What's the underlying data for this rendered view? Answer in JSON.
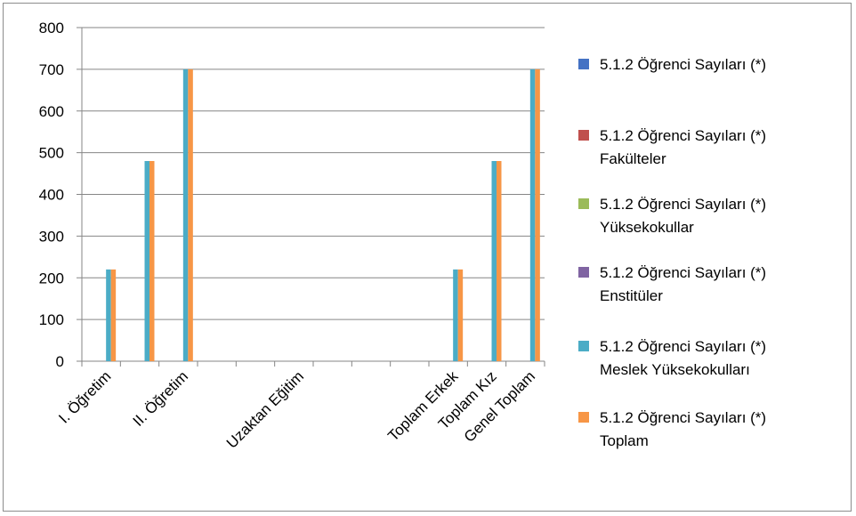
{
  "chart_data": {
    "type": "bar",
    "title": "",
    "xlabel": "",
    "ylabel": "",
    "ylim": [
      0,
      800
    ],
    "yticks": [
      0,
      100,
      200,
      300,
      400,
      500,
      600,
      700,
      800
    ],
    "grid": true,
    "legend_position": "right",
    "categories": [
      "I. Öğretim",
      "",
      "II. Öğretim",
      "",
      "",
      "Uzaktan Eğitim",
      "",
      "",
      "",
      "Toplam Erkek",
      "Toplam Kız",
      "Genel Toplam"
    ],
    "series": [
      {
        "name": "5.1.2  Öğrenci Sayıları (*)",
        "color": "#4472C4",
        "values": [
          0,
          0,
          0,
          0,
          0,
          0,
          0,
          0,
          0,
          0,
          0,
          0
        ]
      },
      {
        "name": "5.1.2  Öğrenci Sayıları (*) Fakülteler",
        "color": "#C0504D",
        "values": [
          0,
          0,
          0,
          0,
          0,
          0,
          0,
          0,
          0,
          0,
          0,
          0
        ]
      },
      {
        "name": "5.1.2  Öğrenci Sayıları (*) Yüksekokullar",
        "color": "#9BBB59",
        "values": [
          0,
          0,
          0,
          0,
          0,
          0,
          0,
          0,
          0,
          0,
          0,
          0
        ]
      },
      {
        "name": "5.1.2  Öğrenci Sayıları (*) Enstitüler",
        "color": "#8064A2",
        "values": [
          0,
          0,
          0,
          0,
          0,
          0,
          0,
          0,
          0,
          0,
          0,
          0
        ]
      },
      {
        "name": "5.1.2  Öğrenci Sayıları (*) Meslek Yüksekokulları",
        "color": "#4BACC6",
        "values": [
          220,
          480,
          700,
          0,
          0,
          0,
          0,
          0,
          0,
          220,
          480,
          700
        ]
      },
      {
        "name": "5.1.2  Öğrenci Sayıları (*) Toplam",
        "color": "#F79646",
        "values": [
          220,
          480,
          700,
          0,
          0,
          0,
          0,
          0,
          0,
          220,
          480,
          700
        ]
      }
    ],
    "legend": [
      {
        "lines": [
          "5.1.2  Öğrenci Sayıları (*)"
        ],
        "color": "#4472C4"
      },
      {
        "lines": [
          "5.1.2  Öğrenci Sayıları (*)",
          "Fakülteler"
        ],
        "color": "#C0504D"
      },
      {
        "lines": [
          "5.1.2  Öğrenci Sayıları (*)",
          "Yüksekokullar"
        ],
        "color": "#9BBB59"
      },
      {
        "lines": [
          "5.1.2  Öğrenci Sayıları (*)",
          "Enstitüler"
        ],
        "color": "#8064A2"
      },
      {
        "lines": [
          "5.1.2  Öğrenci Sayıları (*)",
          "Meslek Yüksekokulları"
        ],
        "color": "#4BACC6"
      },
      {
        "lines": [
          "5.1.2  Öğrenci Sayıları (*)",
          "Toplam"
        ],
        "color": "#F79646"
      }
    ],
    "axis_color": "#868686",
    "grid_color": "#868686"
  }
}
